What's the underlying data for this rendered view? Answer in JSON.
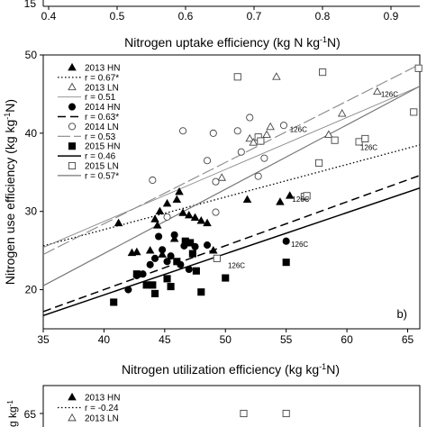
{
  "top_strip": {
    "ytick": "15",
    "xticks": [
      "0.4",
      "0.5",
      "0.6",
      "0.7",
      "0.8",
      "0.9"
    ],
    "xlabel": "Nitrogen uptake efficiency (kg N kg",
    "xlabel_sup": "-1",
    "xlabel_end": "N)"
  },
  "chart_data": {
    "type": "scatter",
    "panel_label": "b)",
    "xlabel": "Nitrogen utilization efficiency (kg kg",
    "xlabel_sup": "-1",
    "xlabel_end": "N)",
    "ylabel": "Nitrogen use efficiency (kg kg",
    "ylabel_sup": "-1",
    "ylabel_end": "N)",
    "xlim": [
      35,
      66
    ],
    "ylim": [
      15,
      50
    ],
    "xticks": [
      35,
      40,
      45,
      50,
      55,
      60,
      65
    ],
    "yticks": [
      20,
      30,
      40,
      50
    ],
    "grid": false,
    "legend_position": "top-left",
    "legend": [
      {
        "label": "2013 HN",
        "type": "marker",
        "marker": "triangle-filled"
      },
      {
        "label": "r = 0.67*",
        "type": "line",
        "style": "dotted"
      },
      {
        "label": "2013 LN",
        "type": "marker",
        "marker": "triangle-open"
      },
      {
        "label": "r = 0.51",
        "type": "line",
        "style": "thin-gray"
      },
      {
        "label": "2014 HN",
        "type": "marker",
        "marker": "circle-filled"
      },
      {
        "label": "r = 0.63*",
        "type": "line",
        "style": "dashed"
      },
      {
        "label": "2014 LN",
        "type": "marker",
        "marker": "circle-open"
      },
      {
        "label": "r = 0.53",
        "type": "line",
        "style": "dash-gray"
      },
      {
        "label": "2015 HN",
        "type": "marker",
        "marker": "square-filled"
      },
      {
        "label": "r = 0.46",
        "type": "line",
        "style": "solid"
      },
      {
        "label": "2015 LN",
        "type": "marker",
        "marker": "square-open"
      },
      {
        "label": "r = 0.57*",
        "type": "line",
        "style": "gray"
      }
    ],
    "series": [
      {
        "name": "2013 HN",
        "marker": "triangle-filled",
        "points": [
          [
            41.2,
            28.5
          ],
          [
            42.3,
            24.7
          ],
          [
            42.7,
            24.8
          ],
          [
            43.8,
            25.0
          ],
          [
            44.2,
            29.0
          ],
          [
            44.4,
            28.2
          ],
          [
            44.6,
            30.0
          ],
          [
            44.8,
            24.5
          ],
          [
            45.2,
            31.0
          ],
          [
            45.8,
            26.5
          ],
          [
            46.0,
            31.5
          ],
          [
            46.2,
            32.5
          ],
          [
            46.5,
            29.8
          ],
          [
            47.0,
            29.5
          ],
          [
            47.5,
            29.2
          ],
          [
            48.0,
            28.8
          ],
          [
            48.5,
            28.5
          ],
          [
            49.0,
            25.0
          ],
          [
            51.8,
            31.5
          ],
          [
            54.5,
            31.2
          ],
          [
            55.3,
            32.0
          ]
        ]
      },
      {
        "name": "2013 LN",
        "marker": "triangle-open",
        "points": [
          [
            49.7,
            34.3
          ],
          [
            52.0,
            39.3
          ],
          [
            52.3,
            38.8
          ],
          [
            53.4,
            39.8
          ],
          [
            53.7,
            40.8
          ],
          [
            54.2,
            47.2
          ],
          [
            58.5,
            39.8
          ],
          [
            59.6,
            42.5
          ],
          [
            62.5,
            45.3
          ]
        ]
      },
      {
        "name": "2014 HN",
        "marker": "circle-filled",
        "points": [
          [
            42.0,
            20.0
          ],
          [
            42.7,
            21.8
          ],
          [
            43.2,
            22.0
          ],
          [
            43.8,
            23.2
          ],
          [
            44.2,
            24.0
          ],
          [
            44.5,
            26.8
          ],
          [
            44.8,
            25.1
          ],
          [
            45.2,
            23.6
          ],
          [
            45.5,
            24.3
          ],
          [
            45.8,
            27.0
          ],
          [
            46.3,
            23.2
          ],
          [
            46.6,
            25.6
          ],
          [
            47.0,
            22.6
          ],
          [
            47.5,
            25.5
          ],
          [
            48.5,
            25.7
          ],
          [
            55.0,
            26.2
          ]
        ]
      },
      {
        "name": "2014 LN",
        "marker": "circle-open",
        "points": [
          [
            44.0,
            34.0
          ],
          [
            45.2,
            29.3
          ],
          [
            46.5,
            40.3
          ],
          [
            48.5,
            36.5
          ],
          [
            49.0,
            40.0
          ],
          [
            49.2,
            33.8
          ],
          [
            49.2,
            29.9
          ],
          [
            51.0,
            40.3
          ],
          [
            51.3,
            37.6
          ],
          [
            52.0,
            42.0
          ],
          [
            52.7,
            34.5
          ],
          [
            53.2,
            36.8
          ],
          [
            54.8,
            41.0
          ]
        ]
      },
      {
        "name": "2015 HN",
        "marker": "square-filled",
        "points": [
          [
            40.8,
            18.4
          ],
          [
            42.7,
            22.0
          ],
          [
            43.5,
            20.6
          ],
          [
            44.0,
            20.6
          ],
          [
            44.2,
            19.5
          ],
          [
            45.2,
            21.4
          ],
          [
            45.5,
            20.4
          ],
          [
            46.0,
            23.6
          ],
          [
            46.7,
            26.2
          ],
          [
            47.1,
            26.0
          ],
          [
            47.3,
            24.6
          ],
          [
            47.6,
            22.4
          ],
          [
            48.0,
            19.7
          ],
          [
            50.0,
            21.5
          ],
          [
            55.0,
            23.5
          ]
        ]
      },
      {
        "name": "2015 LN",
        "marker": "square-open",
        "points": [
          [
            49.3,
            24.0
          ],
          [
            51.0,
            47.2
          ],
          [
            52.7,
            39.5
          ],
          [
            52.9,
            39.0
          ],
          [
            56.5,
            31.9
          ],
          [
            56.7,
            32.0
          ],
          [
            57.7,
            36.2
          ],
          [
            58.0,
            47.8
          ],
          [
            59.0,
            39.1
          ],
          [
            61.0,
            38.9
          ],
          [
            61.5,
            39.3
          ],
          [
            65.5,
            42.7
          ],
          [
            65.9,
            48.3
          ]
        ]
      }
    ],
    "fit_lines": [
      {
        "r": "r = 0.67*",
        "style": "dotted",
        "x": [
          35,
          66
        ],
        "y": [
          25.6,
          38.5
        ]
      },
      {
        "r": "r = 0.51",
        "style": "thin-gray",
        "x": [
          35,
          66
        ],
        "y": [
          25.4,
          46.0
        ]
      },
      {
        "r": "r = 0.63*",
        "style": "dashed",
        "x": [
          35,
          66
        ],
        "y": [
          17.2,
          34.6
        ]
      },
      {
        "r": "r = 0.53",
        "style": "dash-gray",
        "x": [
          35,
          66
        ],
        "y": [
          24.5,
          48.8
        ]
      },
      {
        "r": "r = 0.46",
        "style": "solid",
        "x": [
          35,
          66
        ],
        "y": [
          16.7,
          33.0
        ]
      },
      {
        "r": "r = 0.57*",
        "style": "gray",
        "x": [
          35,
          66
        ],
        "y": [
          20.5,
          46.0
        ]
      }
    ],
    "annotations": [
      {
        "text": "126C",
        "x": 62.8,
        "y": 45.0
      },
      {
        "text": "126C",
        "x": 55.3,
        "y": 40.5
      },
      {
        "text": "126C",
        "x": 61.1,
        "y": 38.2
      },
      {
        "text": "126C",
        "x": 55.5,
        "y": 31.6
      },
      {
        "text": "126C",
        "x": 55.4,
        "y": 25.8
      },
      {
        "text": "126C",
        "x": 50.2,
        "y": 23.1
      }
    ]
  },
  "bottom_strip": {
    "ytick": "65",
    "ylabel_fragment": "g kg",
    "legend": [
      {
        "label": "2013 HN",
        "marker": "triangle-filled"
      },
      {
        "label": "r = -0.24",
        "marker": "dotted-line"
      },
      {
        "label": "2013 LN",
        "marker": "triangle-open"
      }
    ],
    "markers": [
      [
        51.5,
        65.2
      ],
      [
        55.0,
        65.3
      ]
    ]
  }
}
